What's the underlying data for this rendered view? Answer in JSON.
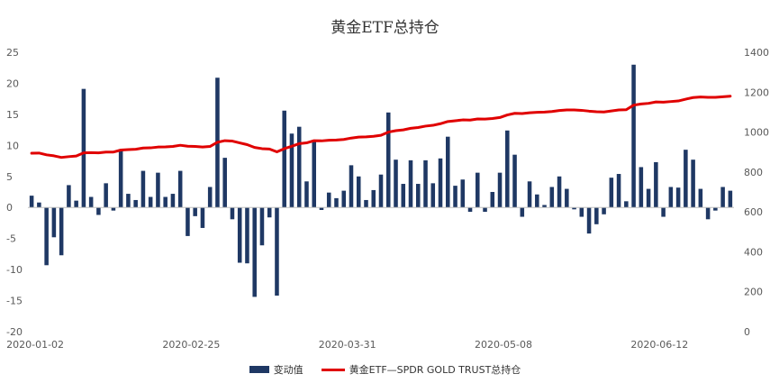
{
  "chart_data": {
    "type": "bar+line",
    "title": "黄金ETF总持仓",
    "colors": {
      "bars": "#1f3864",
      "line": "#e00000",
      "text": "#595959",
      "axis": "#bfbfbf"
    },
    "left_axis": {
      "min": -20,
      "max": 25,
      "ticks": [
        -20,
        -15,
        -10,
        -5,
        0,
        5,
        10,
        15,
        20,
        25
      ]
    },
    "right_axis": {
      "min": 0,
      "max": 1400,
      "ticks": [
        0,
        200,
        400,
        600,
        800,
        1000,
        1200,
        1400
      ]
    },
    "x_tick_labels": [
      "2020-01-02",
      "2020-02-25",
      "2020-03-31",
      "2020-05-08",
      "2020-06-12"
    ],
    "series": [
      {
        "name": "变动值",
        "type": "bar",
        "axis": "left",
        "values": [
          1.9,
          0.8,
          -9.3,
          -4.8,
          -7.7,
          3.6,
          1.1,
          19.1,
          1.7,
          -1.2,
          3.9,
          -0.5,
          9.4,
          2.2,
          1.2,
          5.9,
          1.7,
          5.6,
          1.7,
          2.2,
          5.9,
          -4.6,
          -1.4,
          -3.3,
          3.3,
          20.9,
          8.0,
          -1.9,
          -8.9,
          -9.0,
          -14.4,
          -6.1,
          -1.6,
          -14.2,
          15.6,
          11.9,
          13.0,
          4.2,
          10.8,
          -0.4,
          2.4,
          1.5,
          2.7,
          6.8,
          5.0,
          1.2,
          2.8,
          5.3,
          15.3,
          7.7,
          3.8,
          7.6,
          3.8,
          7.6,
          3.9,
          7.9,
          11.4,
          3.5,
          4.5,
          -0.7,
          5.6,
          -0.7,
          2.5,
          5.6,
          12.4,
          8.5,
          -1.5,
          4.2,
          2.1,
          0.4,
          3.3,
          5.0,
          3.0,
          -0.3,
          -1.5,
          -4.2,
          -2.7,
          -1.1,
          4.8,
          5.4,
          1.0,
          23.0,
          6.5,
          3.0,
          7.3,
          -1.5,
          3.3,
          3.2,
          9.3,
          7.7,
          3.0,
          -1.9,
          -0.5,
          3.3,
          2.7
        ]
      },
      {
        "name": "黄金ETF—SPDR GOLD TRUST总持仓",
        "type": "line",
        "axis": "right",
        "values": [
          894,
          895,
          886,
          881,
          873,
          877,
          880,
          896,
          897,
          896,
          900,
          900,
          910,
          912,
          914,
          920,
          921,
          925,
          926,
          928,
          934,
          929,
          928,
          925,
          928,
          949,
          957,
          955,
          946,
          937,
          923,
          917,
          915,
          901,
          917,
          929,
          942,
          946,
          957,
          956,
          959,
          960,
          963,
          970,
          975,
          976,
          979,
          984,
          1000,
          1007,
          1011,
          1019,
          1023,
          1030,
          1034,
          1042,
          1053,
          1057,
          1061,
          1060,
          1066,
          1065,
          1068,
          1073,
          1086,
          1094,
          1093,
          1097,
          1099,
          1100,
          1103,
          1108,
          1111,
          1111,
          1109,
          1105,
          1102,
          1101,
          1106,
          1111,
          1112,
          1135,
          1141,
          1144,
          1151,
          1150,
          1153,
          1156,
          1165,
          1173,
          1176,
          1174,
          1174,
          1177,
          1180
        ]
      }
    ]
  },
  "legend": {
    "bars_label": "变动值",
    "line_label": "黄金ETF—SPDR GOLD TRUST总持仓"
  }
}
